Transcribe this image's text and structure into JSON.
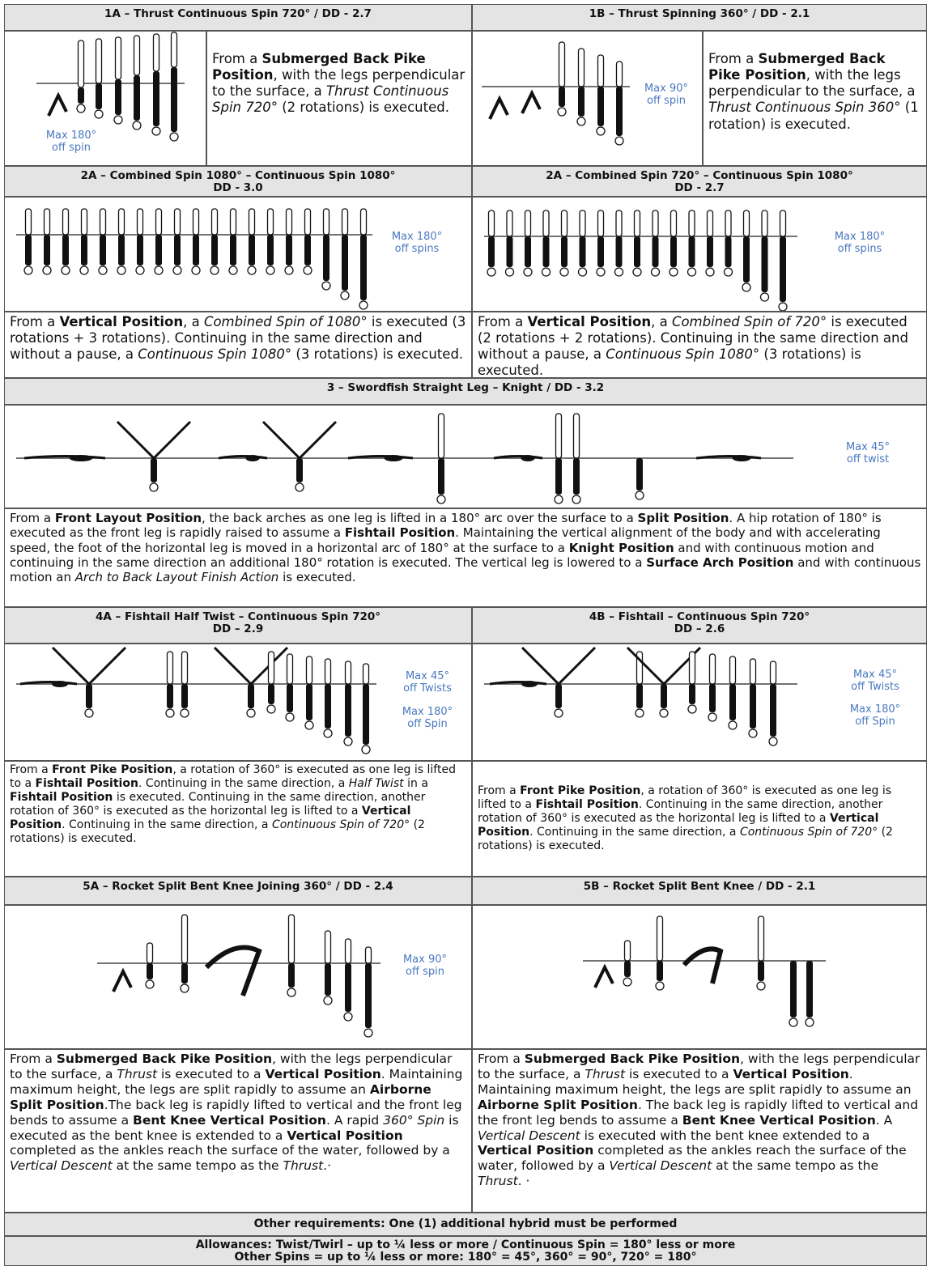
{
  "elements": [
    {
      "title": [
        "1A – Thrust Continuous Spin 720° / DD - 2.7"
      ],
      "notes": [
        [
          "Max 180°",
          "off spin"
        ]
      ],
      "text": [
        "From a ",
        {
          "b": "Submerged Back Pike Position"
        },
        ", with the legs perpendicular to the surface, a ",
        {
          "i": "Thrust Continuous Spin 720°"
        },
        " (2 rotations) is executed."
      ]
    },
    {
      "title": [
        "1B – Thrust Spinning 360° / DD - 2.1"
      ],
      "notes": [
        [
          "Max 90°",
          "off spin"
        ]
      ],
      "text": [
        "From a ",
        {
          "b": "Submerged Back Pike Position"
        },
        ", with the legs perpendicular to the surface, a ",
        {
          "i": "Thrust Continuous Spin 360°"
        },
        " (1 rotation) is executed."
      ]
    },
    {
      "title": [
        "2A – Combined Spin 1080° – Continuous Spin 1080°",
        "DD - 3.0"
      ],
      "notes": [
        [
          "Max 180°",
          "off spins"
        ]
      ],
      "text": [
        "From a ",
        {
          "b": "Vertical Position"
        },
        ", a ",
        {
          "i": "Combined Spin of 1080°"
        },
        " is executed (3 rotations + 3 rotations). Continuing in the same direction and without a pause, a ",
        {
          "i": "Continuous Spin 1080°"
        },
        " (3 rotations) is executed."
      ]
    },
    {
      "title": [
        "2A – Combined Spin 720° – Continuous Spin 1080°",
        "DD - 2.7"
      ],
      "notes": [
        [
          "Max 180°",
          "off spins"
        ]
      ],
      "text": [
        "From a ",
        {
          "b": "Vertical Position"
        },
        ", a ",
        {
          "i": "Combined Spin of 720°"
        },
        " is executed (2 rotations + 2 rotations). Continuing in the same direction and without a pause, a ",
        {
          "i": "Continuous Spin 1080°"
        },
        " (3 rotations) is executed."
      ]
    },
    {
      "title": [
        "3 – Swordfish Straight Leg – Knight / DD - 3.2"
      ],
      "notes": [
        [
          "Max 45°",
          "off twist"
        ]
      ],
      "text": [
        "From a ",
        {
          "b": "Front Layout Position"
        },
        ", the back arches as one leg is lifted in a 180° arc over the surface to a ",
        {
          "b": "Split Position"
        },
        ". A hip rotation of 180° is executed as the front leg is rapidly raised to assume a ",
        {
          "b": "Fishtail Position"
        },
        ". Maintaining the vertical alignment of the body and with accelerating speed, the foot of the horizontal leg is moved in a horizontal arc of 180° at the surface to a ",
        {
          "b": "Knight Position"
        },
        " and with continuous motion and continuing in the same direction an additional 180° rotation is executed. The vertical leg is lowered to a ",
        {
          "b": "Surface Arch Position"
        },
        " and with continuous motion an ",
        {
          "i": "Arch to Back Layout Finish Action"
        },
        " is executed."
      ]
    },
    {
      "title": [
        "4A – Fishtail Half Twist – Continuous Spin 720°",
        "DD – 2.9"
      ],
      "notes": [
        [
          "Max 45°",
          "off Twists"
        ],
        [
          "Max 180°",
          "off Spin"
        ]
      ],
      "text": [
        "From a ",
        {
          "b": "Front Pike Position"
        },
        ", a rotation of 360° is executed as one leg is lifted to a ",
        {
          "b": "Fishtail Position"
        },
        ". Continuing in the same direction, a ",
        {
          "i": "Half Twist"
        },
        " in a ",
        {
          "b": "Fishtail Position"
        },
        " is executed. Continuing in the same direction, another rotation of 360° is executed as the horizontal leg is lifted to a ",
        {
          "b": "Vertical Position"
        },
        ". Continuing in the same direction, a ",
        {
          "i": "Continuous Spin of 720°"
        },
        " (2 rotations) is executed."
      ]
    },
    {
      "title": [
        "4B – Fishtail – Continuous Spin 720°",
        "DD – 2.6"
      ],
      "notes": [
        [
          "Max 45°",
          "off Twists"
        ],
        [
          "Max 180°",
          "off Spin"
        ]
      ],
      "text": [
        "From a ",
        {
          "b": "Front Pike Position"
        },
        ", a rotation of 360° is executed as one leg is lifted to a ",
        {
          "b": "Fishtail Position"
        },
        ". Continuing in the same direction, another rotation of 360° is executed as the horizontal leg is lifted to a ",
        {
          "b": "Vertical Position"
        },
        ". Continuing in the same direction, a ",
        {
          "i": "Continuous Spin of 720°"
        },
        " (2 rotations) is executed."
      ]
    },
    {
      "title": [
        "5A – Rocket Split Bent Knee Joining 360° / DD - 2.4"
      ],
      "notes": [
        [
          "Max 90°",
          "off spin"
        ]
      ],
      "text": [
        "From a ",
        {
          "b": "Submerged Back Pike Position"
        },
        ", with the legs perpendicular to the surface, a ",
        {
          "i": "Thrust"
        },
        " is executed to a ",
        {
          "b": "Vertical Position"
        },
        ". Maintaining maximum height, the legs are split rapidly to assume an ",
        {
          "b": "Airborne Split Position"
        },
        ".The back leg is rapidly lifted to vertical and the front leg bends to assume a ",
        {
          "b": "Bent Knee Vertical Position"
        },
        ". A rapid ",
        {
          "i": "360° Spin"
        },
        " is executed as the bent knee is extended to a ",
        {
          "b": "Vertical Position"
        },
        " completed as the ankles reach the surface of the water, followed by a ",
        {
          "i": "Vertical Descent"
        },
        " at the same tempo as the ",
        {
          "i": "Thrust"
        },
        ".·"
      ]
    },
    {
      "title": [
        "5B – Rocket Split Bent Knee / DD - 2.1"
      ],
      "text": [
        "From a ",
        {
          "b": "Submerged Back Pike Position"
        },
        ", with the legs perpendicular to the surface, a ",
        {
          "i": "Thrust"
        },
        " is executed to a ",
        {
          "b": "Vertical Position"
        },
        ". Maintaining maximum height, the legs are split rapidly to assume an ",
        {
          "b": "Airborne Split Position"
        },
        ". The back leg is rapidly lifted to vertical and the front leg bends to assume a ",
        {
          "b": "Bent Knee Vertical Position"
        },
        ". A ",
        {
          "i": "Vertical Descent"
        },
        " is executed with the bent knee extended to a ",
        {
          "b": "Vertical Position"
        },
        " completed as the ankles reach the surface of the water, followed by a ",
        {
          "i": "Vertical Descent"
        },
        " at the same tempo as the ",
        {
          "i": "Thrust"
        },
        ". ·"
      ]
    }
  ],
  "footer": {
    "requirements": "Other requirements: One (1) additional hybrid must be performed",
    "allowances": [
      "Allowances: Twist/Twirl – up to ¼ less or more / Continuous Spin = 180° less or more",
      "Other Spins = up to ¼ less or more: 180° = 45°, 360° = 90°, 720° = 180°"
    ]
  }
}
